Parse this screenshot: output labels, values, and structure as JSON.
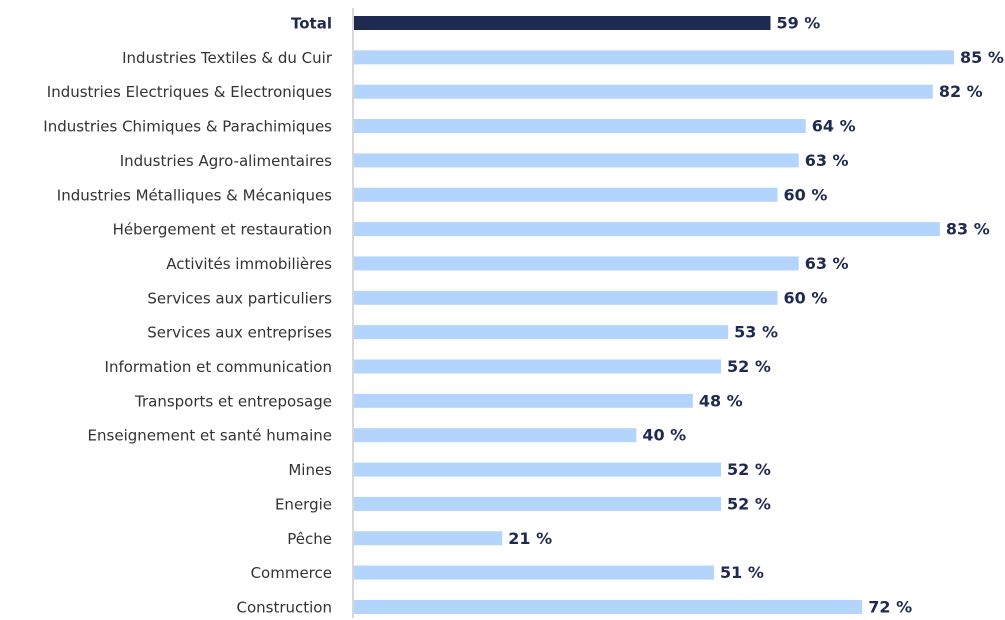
{
  "chart_data": {
    "type": "barh",
    "categories": [
      "Total",
      "Industries Textiles & du Cuir",
      "Industries Electriques & Electroniques",
      "Industries Chimiques & Parachimiques",
      "Industries Agro-alimentaires",
      "Industries Métalliques & Mécaniques",
      "Hébergement et restauration",
      "Activités immobilières",
      "Services aux particuliers",
      "Services aux entreprises",
      "Information et communication",
      "Transports et entreposage",
      "Enseignement et santé humaine",
      "Mines",
      "Energie",
      "Pêche",
      "Commerce",
      "Construction"
    ],
    "values": [
      59,
      85,
      82,
      64,
      63,
      60,
      83,
      63,
      60,
      53,
      52,
      48,
      40,
      52,
      52,
      21,
      51,
      72
    ],
    "value_labels": [
      "59 %",
      "85 %",
      "82 %",
      "64 %",
      "63 %",
      "60 %",
      "83 %",
      "63 %",
      "60 %",
      "53 %",
      "52 %",
      "48 %",
      "40 %",
      "52 %",
      "52 %",
      "21 %",
      "51 %",
      "72 %"
    ],
    "colors": [
      "#1e2a50",
      "#b3d4fc",
      "#b3d4fc",
      "#b3d4fc",
      "#b3d4fc",
      "#b3d4fc",
      "#b3d4fc",
      "#b3d4fc",
      "#b3d4fc",
      "#b3d4fc",
      "#b3d4fc",
      "#b3d4fc",
      "#b3d4fc",
      "#b3d4fc",
      "#b3d4fc",
      "#b3d4fc",
      "#b3d4fc",
      "#b3d4fc"
    ]
  }
}
